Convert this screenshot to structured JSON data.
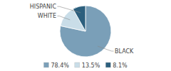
{
  "chart_data": {
    "type": "pie",
    "categories": [
      "BLACK",
      "WHITE",
      "HISPANIC"
    ],
    "values": [
      78.4,
      13.5,
      8.1
    ],
    "value_labels": [
      "78.4%",
      "13.5%",
      "8.1%"
    ],
    "colors": [
      "#7a9fb8",
      "#c9dde8",
      "#2c5f7d"
    ],
    "legend": "bottom"
  }
}
